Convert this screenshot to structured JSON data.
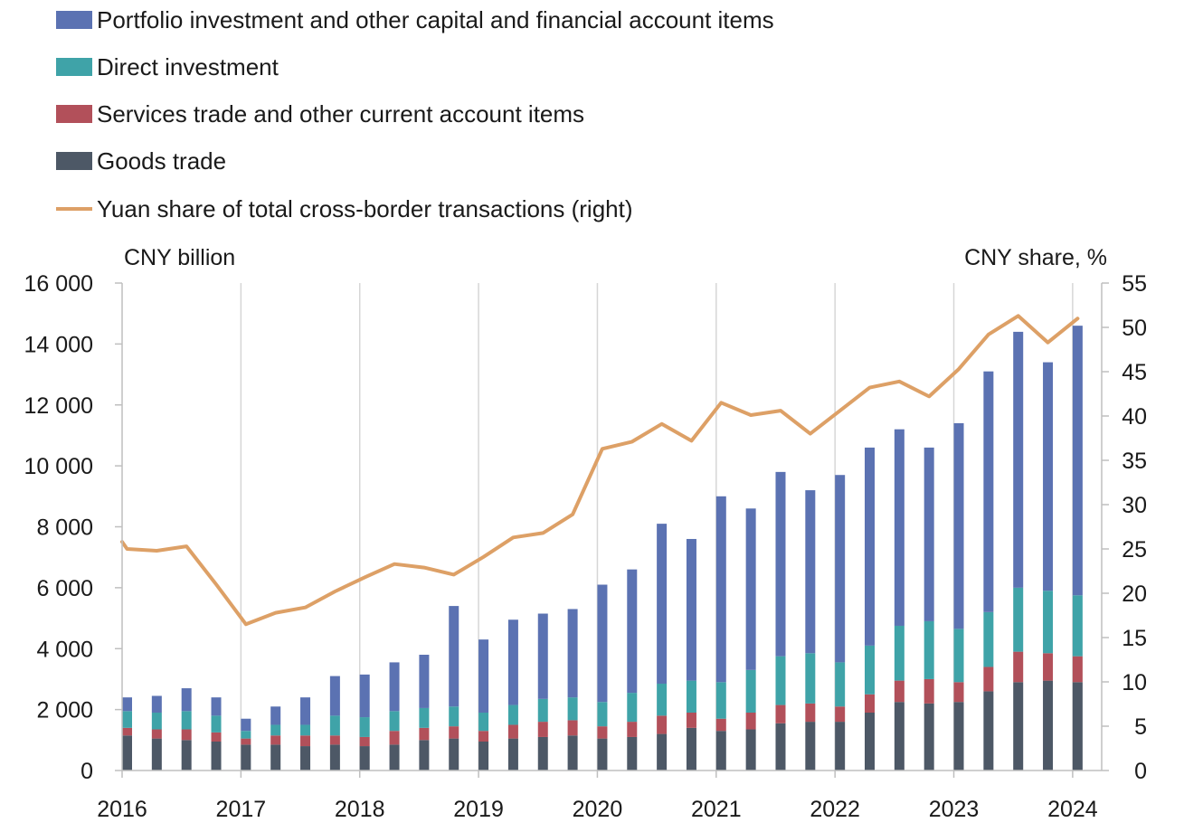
{
  "chart_data": {
    "type": "bar",
    "stacked": true,
    "title": "",
    "left_axis_label": "CNY billion",
    "right_axis_label": "CNY share, %",
    "ylim": [
      0,
      16000
    ],
    "y_ticks": [
      0,
      2000,
      4000,
      6000,
      8000,
      10000,
      12000,
      14000,
      16000
    ],
    "y_tick_labels": [
      "0",
      "2 000",
      "4 000",
      "6 000",
      "8 000",
      "10 000",
      "12 000",
      "14 000",
      "16 000"
    ],
    "y2lim": [
      0,
      55
    ],
    "y2_ticks": [
      0,
      5,
      10,
      15,
      20,
      25,
      30,
      35,
      40,
      45,
      50,
      55
    ],
    "y2_tick_labels": [
      "0",
      "5",
      "10",
      "15",
      "20",
      "25",
      "30",
      "35",
      "40",
      "45",
      "50",
      "55"
    ],
    "year_labels": [
      "2016",
      "2017",
      "2018",
      "2019",
      "2020",
      "2021",
      "2022",
      "2023",
      "2024"
    ],
    "grid": "vertical",
    "legend_position": "top-left",
    "categories": [
      "2016 Q1",
      "2016 Q2",
      "2016 Q3",
      "2016 Q4",
      "2017 Q1",
      "2017 Q2",
      "2017 Q3",
      "2017 Q4",
      "2018 Q1",
      "2018 Q2",
      "2018 Q3",
      "2018 Q4",
      "2019 Q1",
      "2019 Q2",
      "2019 Q3",
      "2019 Q4",
      "2020 Q1",
      "2020 Q2",
      "2020 Q3",
      "2020 Q4",
      "2021 Q1",
      "2021 Q2",
      "2021 Q3",
      "2021 Q4",
      "2022 Q1",
      "2022 Q2",
      "2022 Q3",
      "2022 Q4",
      "2023 Q1",
      "2023 Q2",
      "2023 Q3",
      "2023 Q4",
      "2024 Q1"
    ],
    "series": [
      {
        "name": "Goods trade",
        "color": "#4d5866",
        "values": [
          1150,
          1050,
          1000,
          950,
          850,
          850,
          800,
          850,
          800,
          850,
          1000,
          1050,
          950,
          1050,
          1100,
          1150,
          1050,
          1100,
          1200,
          1400,
          1300,
          1350,
          1550,
          1600,
          1600,
          1900,
          2250,
          2200,
          2250,
          2600,
          2900,
          2950,
          2900
        ]
      },
      {
        "name": "Services trade and other current account items",
        "color": "#b2505a",
        "values": [
          250,
          300,
          350,
          300,
          200,
          300,
          350,
          300,
          300,
          450,
          400,
          400,
          350,
          450,
          500,
          500,
          400,
          500,
          600,
          500,
          400,
          550,
          600,
          600,
          500,
          600,
          700,
          800,
          650,
          800,
          1000,
          900,
          850
        ]
      },
      {
        "name": "Direct investment",
        "color": "#3fa3a8",
        "values": [
          550,
          550,
          600,
          550,
          250,
          350,
          350,
          650,
          650,
          650,
          650,
          650,
          600,
          650,
          750,
          750,
          800,
          950,
          1050,
          1050,
          1200,
          1400,
          1600,
          1650,
          1450,
          1600,
          1800,
          1900,
          1750,
          1800,
          2100,
          2050,
          2000
        ]
      },
      {
        "name": "Portfolio investment and other capital and financial account items",
        "color": "#5b72b2",
        "values": [
          450,
          550,
          750,
          600,
          400,
          600,
          900,
          1300,
          1400,
          1600,
          1750,
          3300,
          2400,
          2800,
          2800,
          2900,
          3850,
          4050,
          5250,
          4650,
          6100,
          5300,
          6050,
          5350,
          6150,
          6500,
          6450,
          5700,
          6750,
          7900,
          8400,
          7500,
          8850
        ]
      }
    ],
    "line": {
      "name": "Yuan share of total cross-border transactions (right)",
      "color": "#dda066",
      "axis": "right",
      "start_value": 25.8,
      "values": [
        25.0,
        24.8,
        25.3,
        21.0,
        16.5,
        17.8,
        18.4,
        20.2,
        21.8,
        23.3,
        22.9,
        22.1,
        24.1,
        26.3,
        26.8,
        28.9,
        36.3,
        37.1,
        39.1,
        37.2,
        41.5,
        40.1,
        40.6,
        38.0,
        40.6,
        43.2,
        43.9,
        42.2,
        45.3,
        49.2,
        51.3,
        48.3,
        51.0
      ]
    }
  }
}
